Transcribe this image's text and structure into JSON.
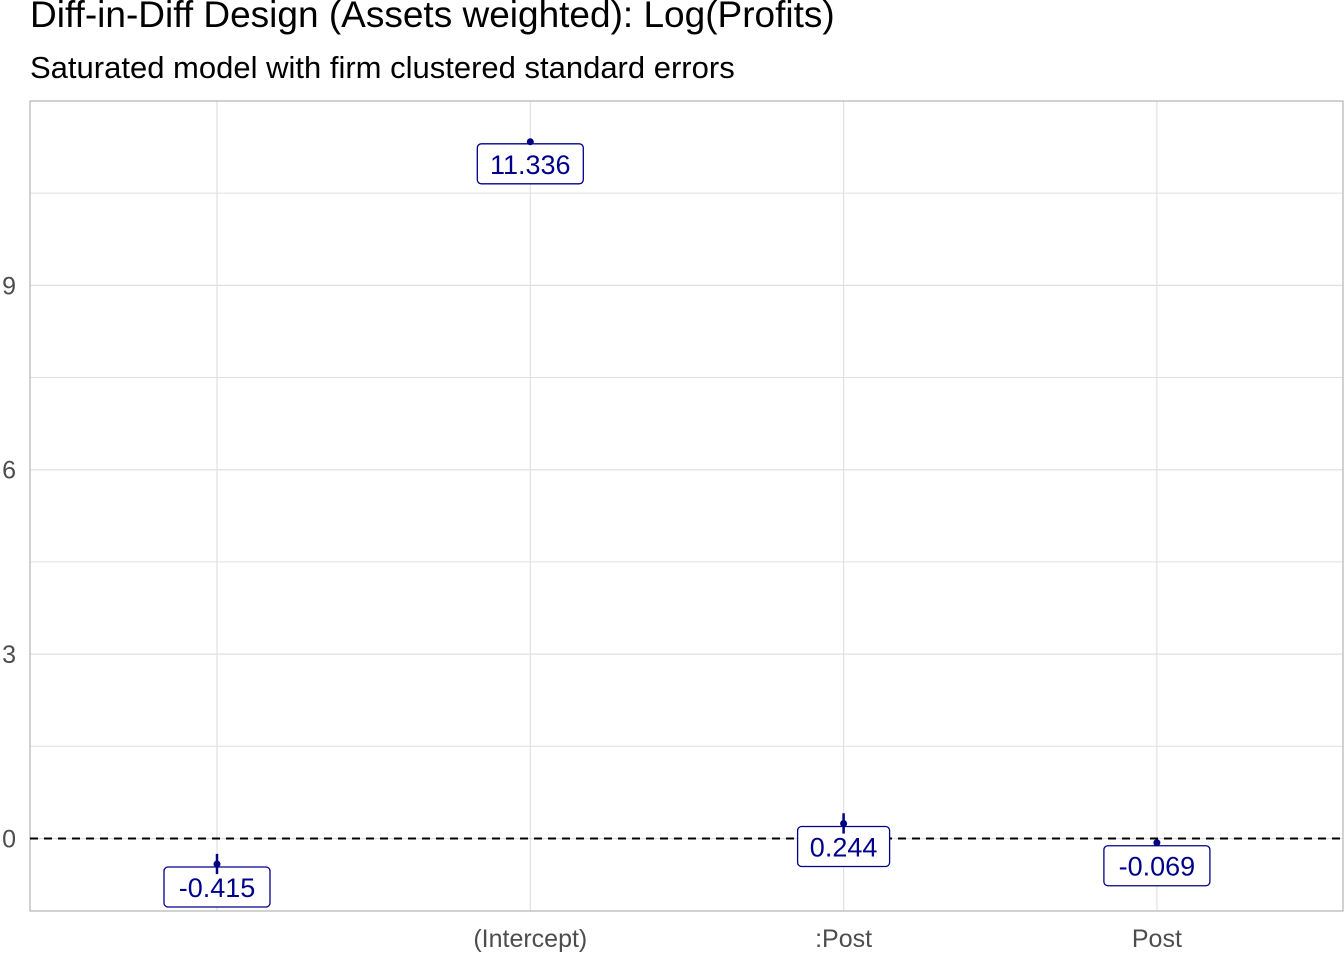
{
  "chart_data": {
    "type": "scatter",
    "title": "Diff-in-Diff Design (Assets weighted): Log(Profits)",
    "subtitle": "Saturated model with firm clustered standard errors",
    "xlabel": "",
    "ylabel": "",
    "categories": [
      "",
      "(Intercept)",
      ":Post",
      "Post"
    ],
    "y_tick_labels": [
      "0",
      "3",
      "6",
      "9"
    ],
    "y_ticks": [
      0,
      3,
      6,
      9
    ],
    "ylim": [
      -1.18,
      12.0
    ],
    "grid": true,
    "reference_line": {
      "y": 0,
      "style": "dashed"
    },
    "points": [
      {
        "category": "",
        "estimate": -0.415,
        "ci": [
          -0.58,
          -0.25
        ],
        "label": "-0.415"
      },
      {
        "category": "(Intercept)",
        "estimate": 11.336,
        "ci": [
          11.3,
          11.38
        ],
        "label": "11.336"
      },
      {
        "category": ":Post",
        "estimate": 0.244,
        "ci": [
          0.08,
          0.41
        ],
        "label": "0.244"
      },
      {
        "category": "Post",
        "estimate": -0.069,
        "ci": [
          -0.09,
          -0.05
        ],
        "label": "-0.069"
      }
    ],
    "colors": {
      "label_text": "#00008b",
      "label_border": "#00008b",
      "point": "#000080",
      "grid": "#e0e0e0",
      "panel_border": "#b3b3b3"
    }
  }
}
